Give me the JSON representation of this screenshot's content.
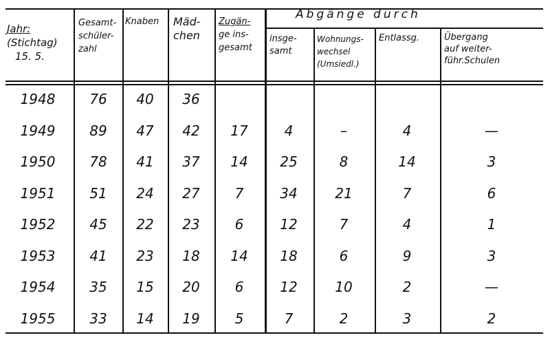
{
  "headers": {
    "jahr": [
      "Jahr:",
      "(Stichtag)",
      "15. 5."
    ],
    "gesamt": [
      "Gesamt-",
      "schüler-",
      "zahl"
    ],
    "knaben": "Knaben",
    "maedchen": [
      "Mäd-",
      "chen"
    ],
    "zugaenge": [
      "Zugän-",
      "ge ins-",
      "gesamt"
    ],
    "abgaenge_group": "Abgänge durch",
    "insgesamt": [
      "insge-",
      "samt"
    ],
    "wohnung": [
      "Wohnungs-",
      "wechsel",
      "(Umsiedl.)"
    ],
    "entlassg": "Entlassg.",
    "uebergang": [
      "Übergang",
      "auf weiter-",
      "führ.Schulen"
    ]
  },
  "rows": [
    [
      "1948",
      "76",
      "40",
      "36",
      "",
      "",
      "",
      "",
      ""
    ],
    [
      "1949",
      "89",
      "47",
      "42",
      "17",
      "4",
      "–",
      "4",
      "—"
    ],
    [
      "1950",
      "78",
      "41",
      "37",
      "14",
      "25",
      "8",
      "14",
      "3"
    ],
    [
      "1951",
      "51",
      "24",
      "27",
      "7",
      "34",
      "21",
      "7",
      "6"
    ],
    [
      "1952",
      "45",
      "22",
      "23",
      "6",
      "12",
      "7",
      "4",
      "1"
    ],
    [
      "1953",
      "41",
      "23",
      "18",
      "14",
      "18",
      "6",
      "9",
      "3"
    ],
    [
      "1954",
      "35",
      "15",
      "20",
      "6",
      "12",
      "10",
      "2",
      "—"
    ],
    [
      "1955",
      "33",
      "14",
      "19",
      "5",
      "7",
      "2",
      "3",
      "2"
    ]
  ]
}
